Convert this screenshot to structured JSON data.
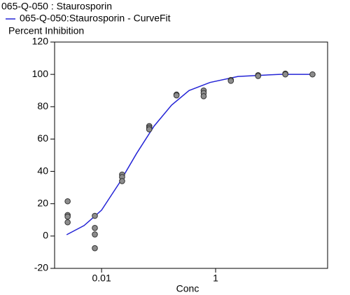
{
  "chart_data": {
    "type": "scatter",
    "title": "065-Q-050  : Staurosporin",
    "y_label": "Percent Inhibition",
    "x_label": "Conc",
    "log_x": true,
    "xlim": [
      0.0015,
      92
    ],
    "ylim": [
      -20,
      120
    ],
    "xticks": [
      {
        "value": 0.01,
        "label": "0.01"
      },
      1
    ],
    "yticks": [
      -20,
      0,
      20,
      40,
      60,
      80,
      100,
      120
    ],
    "series": [
      {
        "name": "065-Q-050:Staurosporin - CurveFit",
        "type": "line",
        "color": "#2424d6",
        "x": [
          0.00244,
          0.00493,
          0.01,
          0.0203,
          0.041,
          0.0832,
          0.169,
          0.342,
          0.798,
          2.47,
          13.5,
          50.8
        ],
        "values": [
          0.8,
          6.5,
          16,
          32.6,
          51,
          68,
          81,
          90,
          95,
          98.7,
          100,
          100
        ]
      },
      {
        "type": "scatter",
        "color": "#8c8c8c",
        "x": [
          0.00254,
          0.00254,
          0.00254,
          0.00254,
          0.00762,
          0.00762,
          0.00762,
          0.00762,
          0.0229,
          0.0229,
          0.0229,
          0.0686,
          0.0686,
          0.0686,
          0.206,
          0.206,
          0.617,
          0.617,
          0.617,
          1.85,
          1.85,
          5.56,
          5.56,
          16.7,
          16.7,
          50
        ],
        "values": [
          21.5,
          13,
          12,
          8.5,
          12.5,
          5,
          1,
          -7.5,
          38,
          36.5,
          34,
          68,
          67,
          66,
          87.5,
          87,
          90,
          88.5,
          86.5,
          96.5,
          96,
          99.5,
          99,
          100.5,
          100,
          100
        ]
      }
    ]
  }
}
